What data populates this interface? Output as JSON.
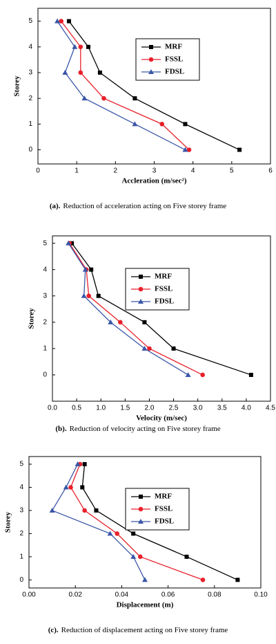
{
  "chart_data": [
    {
      "type": "line",
      "x_label": "Accleration (m/sec²)",
      "y_label": "Storey",
      "caption_label": "(a).",
      "caption_text": "Reduction of acceleration acting on Five storey frame",
      "storeys": [
        0,
        1,
        2,
        3,
        4,
        5
      ],
      "xlim": [
        0,
        6
      ],
      "xticks": [
        0,
        1,
        2,
        3,
        4,
        5,
        6
      ],
      "ylim": [
        -0.55,
        5.5
      ],
      "yticks": [
        0,
        1,
        2,
        3,
        4,
        5
      ],
      "series": [
        {
          "name": "MRF",
          "color": "#000000",
          "marker": "square",
          "values": [
            5.2,
            3.8,
            2.5,
            1.6,
            1.3,
            0.8
          ]
        },
        {
          "name": "FSSL",
          "color": "#e8202a",
          "marker": "circle",
          "values": [
            3.9,
            3.2,
            1.7,
            1.1,
            1.1,
            0.6
          ]
        },
        {
          "name": "FDSL",
          "color": "#3a56a8",
          "marker": "triangle",
          "values": [
            3.8,
            2.5,
            1.2,
            0.7,
            0.95,
            0.5
          ]
        }
      ]
    },
    {
      "type": "line",
      "x_label": "Velocity (m/sec)",
      "y_label": "Storey",
      "caption_label": "(b).",
      "caption_text": "Reduction of velocity acting on Five storey frame",
      "storeys": [
        0,
        1,
        2,
        3,
        4,
        5
      ],
      "xlim": [
        0,
        4.5
      ],
      "xticks": [
        {
          "value": 0,
          "label": "0.0"
        },
        0.5,
        {
          "value": 1,
          "label": "1.0"
        },
        1.5,
        {
          "value": 2,
          "label": "2.0"
        },
        2.5,
        {
          "value": 3,
          "label": "3.0"
        },
        3.5,
        {
          "value": 4,
          "label": "4.0"
        },
        4.5
      ],
      "ylim": [
        -1,
        5.28
      ],
      "yticks": [
        0,
        1,
        2,
        3,
        4,
        5
      ],
      "series": [
        {
          "name": "MRF",
          "color": "#000000",
          "marker": "square",
          "values": [
            4.1,
            2.5,
            1.9,
            0.95,
            0.8,
            0.4
          ]
        },
        {
          "name": "FSSL",
          "color": "#e8202a",
          "marker": "circle",
          "values": [
            3.1,
            2.0,
            1.4,
            0.75,
            0.7,
            0.35
          ]
        },
        {
          "name": "FDSL",
          "color": "#3a56a8",
          "marker": "triangle",
          "values": [
            2.8,
            1.9,
            1.2,
            0.65,
            0.68,
            0.33
          ]
        }
      ]
    },
    {
      "type": "line",
      "x_label": "Displacement (m)",
      "y_label": "Storey",
      "caption_label": "(c).",
      "caption_text": "Reduction of displacement acting on Five storey frame",
      "storeys": [
        0,
        1,
        2,
        3,
        4,
        5
      ],
      "xlim": [
        0,
        0.1
      ],
      "xticks": [
        {
          "value": 0,
          "label": "0.00"
        },
        {
          "value": 0.02,
          "label": "0.02"
        },
        {
          "value": 0.04,
          "label": "0.04"
        },
        {
          "value": 0.06,
          "label": "0.06"
        },
        {
          "value": 0.08,
          "label": "0.08"
        },
        {
          "value": 0.1,
          "label": "0.10"
        }
      ],
      "ylim": [
        -0.35,
        5.33
      ],
      "yticks": [
        0,
        1,
        2,
        3,
        4,
        5
      ],
      "series": [
        {
          "name": "MRF",
          "color": "#000000",
          "marker": "square",
          "values": [
            0.09,
            0.068,
            0.045,
            0.029,
            0.023,
            0.024
          ]
        },
        {
          "name": "FSSL",
          "color": "#e8202a",
          "marker": "circle",
          "values": [
            0.075,
            0.048,
            0.038,
            0.024,
            0.018,
            0.022
          ]
        },
        {
          "name": "FDSL",
          "color": "#3a56a8",
          "marker": "triangle",
          "values": [
            0.05,
            0.045,
            0.035,
            0.01,
            0.016,
            0.021
          ]
        }
      ]
    }
  ]
}
